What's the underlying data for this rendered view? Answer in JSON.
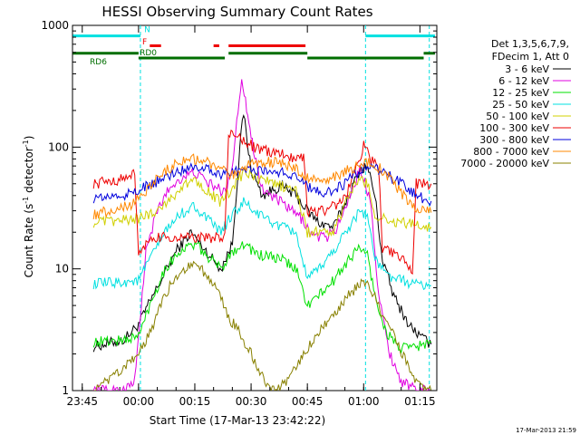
{
  "chart_data": {
    "type": "line",
    "title": "HESSI Observing Summary Count Rates",
    "xlabel": "Start Time (17-Mar-13 23:42:22)",
    "ylabel_main": "Count Rate (s",
    "ylabel_sup1": "-1",
    "ylabel_mid": " detector",
    "ylabel_sup2": "-1",
    "ylabel_end": ")",
    "y_scale": "log",
    "ylim": [
      1,
      1000
    ],
    "xlim_minutes": [
      -17.6,
      79.5
    ],
    "x_ticks": [
      {
        "label": "23:45",
        "minutes": -15
      },
      {
        "label": "00:00",
        "minutes": 0
      },
      {
        "label": "00:15",
        "minutes": 15
      },
      {
        "label": "00:30",
        "minutes": 30
      },
      {
        "label": "00:45",
        "minutes": 45
      },
      {
        "label": "01:00",
        "minutes": 60
      },
      {
        "label": "01:15",
        "minutes": 75
      }
    ],
    "y_ticks": [
      {
        "label": "1",
        "value": 1
      },
      {
        "label": "10",
        "value": 10
      },
      {
        "label": "100",
        "value": 100
      },
      {
        "label": "1000",
        "value": 1000
      }
    ],
    "legend_header": [
      "Det 1,3,5,6,7,9,",
      "FDecim 1, Att 0"
    ],
    "legend_placement": "right",
    "series": [
      {
        "name": "3 - 6 keV",
        "color": "#000000",
        "points": [
          [
            -12,
            2.3
          ],
          [
            -4,
            2.6
          ],
          [
            0,
            3.5
          ],
          [
            5,
            7
          ],
          [
            10,
            14
          ],
          [
            14,
            20
          ],
          [
            18,
            14
          ],
          [
            22,
            10
          ],
          [
            25,
            16
          ],
          [
            27,
            100
          ],
          [
            28,
            190
          ],
          [
            30,
            65
          ],
          [
            33,
            40
          ],
          [
            38,
            48
          ],
          [
            42,
            40
          ],
          [
            45,
            30
          ],
          [
            48,
            24
          ],
          [
            52,
            22
          ],
          [
            56,
            40
          ],
          [
            59,
            65
          ],
          [
            61,
            70
          ],
          [
            63,
            40
          ],
          [
            65,
            12
          ],
          [
            68,
            6
          ],
          [
            72,
            3.5
          ],
          [
            75,
            2.8
          ],
          [
            78,
            2.4
          ]
        ]
      },
      {
        "name": "6 - 12 keV",
        "color": "#e000e0",
        "points": [
          [
            -12,
            1.0
          ],
          [
            -4,
            1.0
          ],
          [
            -1,
            1.2
          ],
          [
            2,
            14
          ],
          [
            5,
            30
          ],
          [
            8,
            45
          ],
          [
            11,
            55
          ],
          [
            15,
            62
          ],
          [
            18,
            52
          ],
          [
            21,
            46
          ],
          [
            23,
            42
          ],
          [
            25,
            70
          ],
          [
            26.5,
            200
          ],
          [
            27.5,
            370
          ],
          [
            28.5,
            250
          ],
          [
            30,
            120
          ],
          [
            33,
            45
          ],
          [
            38,
            35
          ],
          [
            42,
            28
          ],
          [
            44,
            25
          ],
          [
            46,
            19
          ],
          [
            50,
            18
          ],
          [
            53,
            22
          ],
          [
            56,
            38
          ],
          [
            59,
            65
          ],
          [
            60,
            55
          ],
          [
            62,
            35
          ],
          [
            64,
            6
          ],
          [
            67,
            2
          ],
          [
            70,
            1.2
          ],
          [
            74,
            1.0
          ],
          [
            78,
            1.0
          ]
        ]
      },
      {
        "name": "12 - 25 keV",
        "color": "#00e000",
        "points": [
          [
            -12,
            2.5
          ],
          [
            -4,
            2.6
          ],
          [
            0,
            2.8
          ],
          [
            3,
            5
          ],
          [
            7,
            10
          ],
          [
            11,
            14
          ],
          [
            15,
            16
          ],
          [
            18,
            13
          ],
          [
            22,
            10
          ],
          [
            25,
            14
          ],
          [
            28,
            16
          ],
          [
            32,
            13
          ],
          [
            38,
            12
          ],
          [
            42,
            10
          ],
          [
            45,
            5
          ],
          [
            48,
            6
          ],
          [
            52,
            8
          ],
          [
            56,
            12
          ],
          [
            59,
            15
          ],
          [
            61,
            13
          ],
          [
            63,
            6
          ],
          [
            66,
            3
          ],
          [
            70,
            2.2
          ],
          [
            74,
            2.3
          ],
          [
            78,
            2.5
          ]
        ]
      },
      {
        "name": "25 - 50 keV",
        "color": "#00e0e0",
        "points": [
          [
            -12,
            7.5
          ],
          [
            -4,
            7.8
          ],
          [
            0,
            8
          ],
          [
            3,
            12
          ],
          [
            7,
            20
          ],
          [
            11,
            28
          ],
          [
            15,
            33
          ],
          [
            18,
            26
          ],
          [
            22,
            20
          ],
          [
            25,
            28
          ],
          [
            28,
            35
          ],
          [
            32,
            28
          ],
          [
            38,
            22
          ],
          [
            42,
            20
          ],
          [
            45,
            8
          ],
          [
            48,
            10
          ],
          [
            52,
            14
          ],
          [
            56,
            22
          ],
          [
            59,
            30
          ],
          [
            61,
            28
          ],
          [
            63,
            12
          ],
          [
            66,
            9
          ],
          [
            70,
            8
          ],
          [
            74,
            7.5
          ],
          [
            78,
            7.3
          ]
        ]
      },
      {
        "name": "50 - 100 keV",
        "color": "#d0d000",
        "points": [
          [
            -12,
            24
          ],
          [
            -4,
            25
          ],
          [
            0,
            26
          ],
          [
            3,
            28
          ],
          [
            7,
            34
          ],
          [
            11,
            45
          ],
          [
            15,
            55
          ],
          [
            18,
            45
          ],
          [
            22,
            35
          ],
          [
            25,
            45
          ],
          [
            28,
            62
          ],
          [
            32,
            55
          ],
          [
            38,
            48
          ],
          [
            42,
            44
          ],
          [
            45,
            20
          ],
          [
            48,
            20
          ],
          [
            52,
            20
          ],
          [
            56,
            40
          ],
          [
            59,
            55
          ],
          [
            61,
            50
          ],
          [
            63,
            28
          ],
          [
            66,
            25
          ],
          [
            70,
            24
          ],
          [
            74,
            23
          ],
          [
            78,
            22
          ]
        ]
      },
      {
        "name": "100 - 300 keV",
        "color": "#ee0000",
        "points": [
          [
            -12,
            50
          ],
          [
            -4,
            55
          ],
          [
            -1,
            60
          ],
          [
            0,
            14
          ],
          [
            5,
            18
          ],
          [
            10,
            18
          ],
          [
            15,
            18
          ],
          [
            20,
            18
          ],
          [
            23,
            18
          ],
          [
            24,
            130
          ],
          [
            27,
            120
          ],
          [
            32,
            95
          ],
          [
            38,
            88
          ],
          [
            42,
            82
          ],
          [
            44,
            85
          ],
          [
            45,
            30
          ],
          [
            50,
            30
          ],
          [
            55,
            38
          ],
          [
            59,
            80
          ],
          [
            60,
            110
          ],
          [
            62,
            78
          ],
          [
            64,
            70
          ],
          [
            65,
            15
          ],
          [
            70,
            12
          ],
          [
            73,
            10
          ],
          [
            74,
            50
          ],
          [
            78,
            50
          ]
        ]
      },
      {
        "name": "300 - 800 keV",
        "color": "#0000dd",
        "points": [
          [
            -12,
            38
          ],
          [
            -4,
            40
          ],
          [
            0,
            44
          ],
          [
            5,
            52
          ],
          [
            10,
            62
          ],
          [
            14,
            70
          ],
          [
            18,
            68
          ],
          [
            22,
            60
          ],
          [
            25,
            62
          ],
          [
            28,
            65
          ],
          [
            32,
            65
          ],
          [
            38,
            62
          ],
          [
            42,
            58
          ],
          [
            46,
            45
          ],
          [
            50,
            42
          ],
          [
            54,
            48
          ],
          [
            58,
            60
          ],
          [
            61,
            70
          ],
          [
            63,
            68
          ],
          [
            66,
            60
          ],
          [
            70,
            50
          ],
          [
            73,
            42
          ],
          [
            76,
            38
          ],
          [
            78,
            36
          ]
        ]
      },
      {
        "name": "800 - 7000 keV",
        "color": "#ff8800",
        "points": [
          [
            -12,
            28
          ],
          [
            -6,
            31
          ],
          [
            -2,
            34
          ],
          [
            2,
            44
          ],
          [
            6,
            60
          ],
          [
            10,
            74
          ],
          [
            14,
            80
          ],
          [
            18,
            76
          ],
          [
            22,
            66
          ],
          [
            24,
            58
          ],
          [
            27,
            60
          ],
          [
            30,
            74
          ],
          [
            34,
            76
          ],
          [
            38,
            74
          ],
          [
            42,
            66
          ],
          [
            46,
            54
          ],
          [
            50,
            52
          ],
          [
            54,
            60
          ],
          [
            58,
            70
          ],
          [
            61,
            75
          ],
          [
            64,
            68
          ],
          [
            67,
            55
          ],
          [
            70,
            42
          ],
          [
            73,
            33
          ],
          [
            76,
            30
          ],
          [
            78,
            29
          ]
        ]
      },
      {
        "name": "7000 - 20000 keV",
        "color": "#888000",
        "points": [
          [
            -12,
            1.0
          ],
          [
            -8,
            1.2
          ],
          [
            -4,
            1.5
          ],
          [
            0,
            2
          ],
          [
            3,
            3
          ],
          [
            6,
            5
          ],
          [
            9,
            8
          ],
          [
            12,
            10
          ],
          [
            15,
            11
          ],
          [
            18,
            9
          ],
          [
            21,
            7
          ],
          [
            24,
            4
          ],
          [
            27,
            3
          ],
          [
            30,
            2
          ],
          [
            33,
            1.3
          ],
          [
            36,
            1.0
          ],
          [
            40,
            1.2
          ],
          [
            44,
            2
          ],
          [
            48,
            3
          ],
          [
            52,
            4
          ],
          [
            56,
            6
          ],
          [
            60,
            8
          ],
          [
            62,
            7
          ],
          [
            65,
            4
          ],
          [
            68,
            3
          ],
          [
            72,
            1.5
          ],
          [
            75,
            1.1
          ],
          [
            78,
            1.0
          ]
        ]
      }
    ],
    "vertical_markers_minutes": [
      0.5,
      60.5,
      77.5
    ],
    "annotations": [
      {
        "text": "N",
        "minutes": 1.5,
        "level": 880,
        "color": "#00e0e0"
      },
      {
        "text": "F",
        "minutes": 1.0,
        "level": 700,
        "color": "#ee0000"
      },
      {
        "text": "RD0",
        "minutes": 0.3,
        "level": 570,
        "color": "#006e00"
      },
      {
        "text": "RD6",
        "minutes": -13,
        "level": 480,
        "color": "#006e00"
      }
    ],
    "status_bars": [
      {
        "label": "N",
        "color": "#00e0e0",
        "level": 820,
        "segments": [
          [
            -17.5,
            0.5
          ],
          [
            60.5,
            79
          ]
        ]
      },
      {
        "label": "F",
        "color": "#ee0000",
        "level": 680,
        "segments": [
          [
            3,
            6
          ],
          [
            20,
            21.5
          ],
          [
            24,
            44.5
          ]
        ]
      },
      {
        "label": "RD0",
        "color": "#006e00",
        "level": 590,
        "segments": [
          [
            -17.5,
            0
          ],
          [
            24,
            45
          ],
          [
            76,
            79
          ]
        ]
      },
      {
        "label": "RD6",
        "color": "#006e00",
        "level": 540,
        "segments": [
          [
            0,
            23
          ],
          [
            45,
            76
          ]
        ]
      }
    ]
  },
  "timestamp": "17-Mar-2013 21:59"
}
